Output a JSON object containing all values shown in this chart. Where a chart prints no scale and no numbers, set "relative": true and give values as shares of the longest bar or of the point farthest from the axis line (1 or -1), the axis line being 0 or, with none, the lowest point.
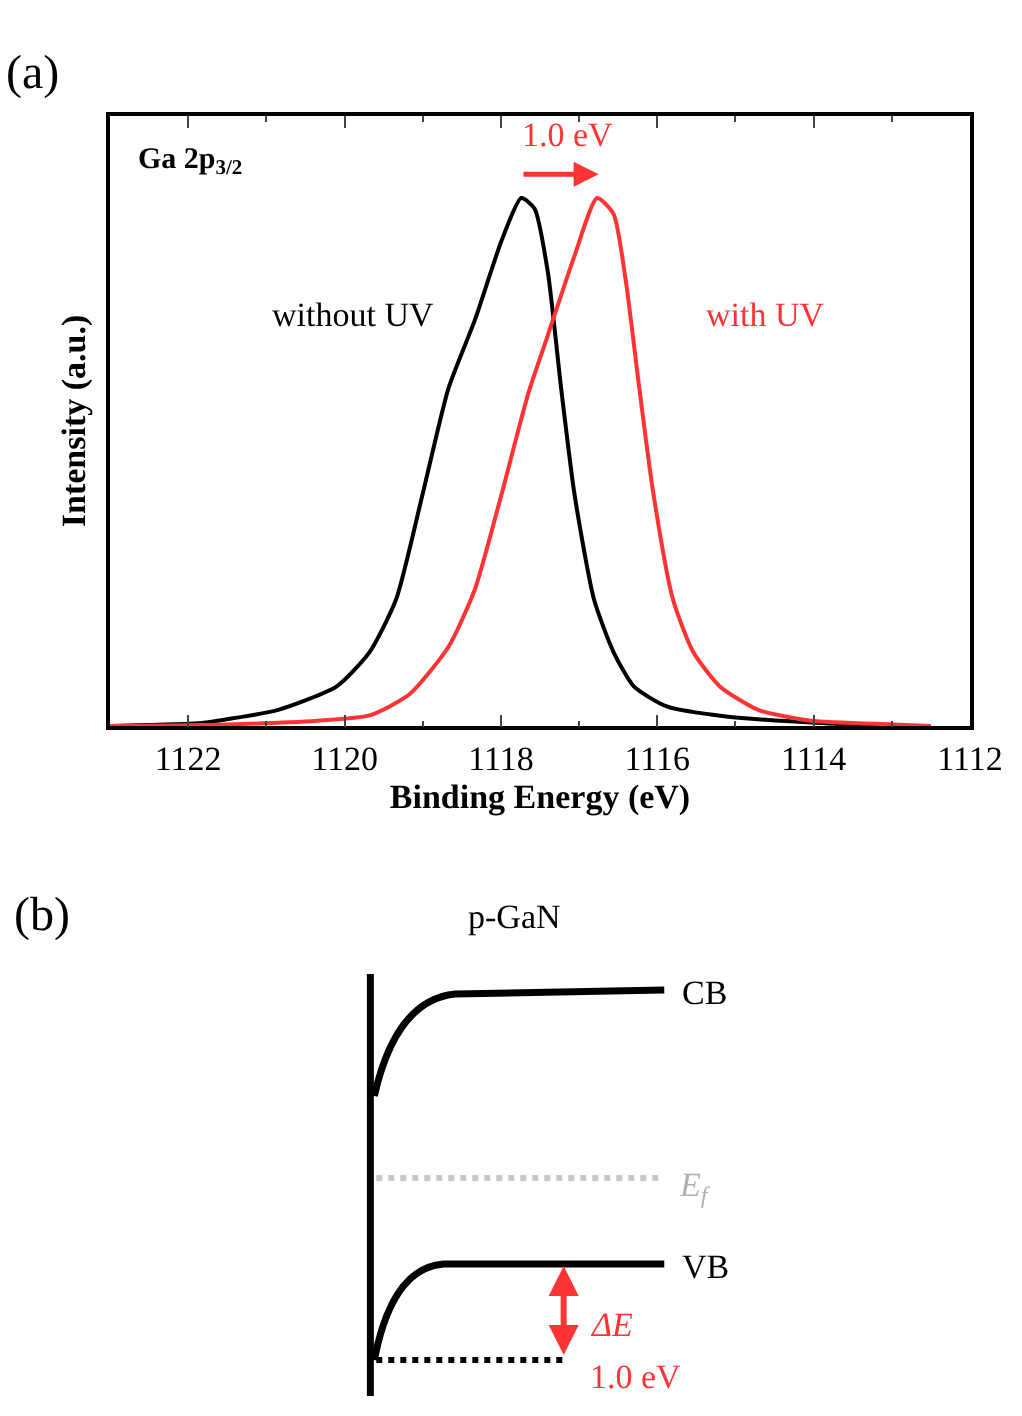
{
  "chart_data": [
    {
      "type": "line",
      "xlabel": "Binding Energy (eV)",
      "ylabel": "Intensity (a.u.)",
      "relative": true,
      "xlim": [
        1123,
        1112
      ],
      "xticks": [
        1122,
        1120,
        1118,
        1116,
        1114,
        1112
      ],
      "marker": "none",
      "line_style": "solid",
      "series": [
        {
          "name": "without UV",
          "color": "#000000",
          "x": [
            1123.0,
            1121.87,
            1121.62,
            1120.86,
            1120.1,
            1119.68,
            1119.34,
            1119.0,
            1118.67,
            1118.33,
            1117.99,
            1117.74,
            1117.57,
            1117.4,
            1117.23,
            1117.06,
            1116.81,
            1116.56,
            1116.3,
            1115.88,
            1115.12,
            1113.85,
            1113.01
          ],
          "values": [
            0.0,
            0.005,
            0.01,
            0.03,
            0.075,
            0.14,
            0.24,
            0.44,
            0.64,
            0.77,
            0.92,
            1.0,
            0.98,
            0.86,
            0.64,
            0.44,
            0.24,
            0.14,
            0.075,
            0.037,
            0.018,
            0.005,
            0.0
          ]
        },
        {
          "name": "with UV",
          "color": "#ff3333",
          "x": [
            1123.0,
            1121.5,
            1120.35,
            1119.68,
            1119.17,
            1118.67,
            1118.33,
            1117.99,
            1117.65,
            1117.4,
            1117.06,
            1116.77,
            1116.56,
            1116.4,
            1116.23,
            1116.05,
            1115.8,
            1115.54,
            1115.2,
            1114.7,
            1114.03,
            1113.0,
            1112.5
          ],
          "values": [
            0.0,
            0.003,
            0.01,
            0.02,
            0.06,
            0.15,
            0.26,
            0.44,
            0.63,
            0.74,
            0.89,
            1.0,
            0.97,
            0.84,
            0.64,
            0.44,
            0.24,
            0.14,
            0.075,
            0.03,
            0.01,
            0.003,
            0.0
          ]
        }
      ],
      "annotations": [
        "(a)",
        "Ga 2p$_{3/2}$",
        "1.0 eV"
      ]
    },
    {
      "type": "other",
      "title": "p-GaN",
      "annotations": [
        "(b)",
        "CB",
        "E$_{f}$",
        "VB",
        "ΔE",
        "1.0 eV"
      ]
    }
  ]
}
